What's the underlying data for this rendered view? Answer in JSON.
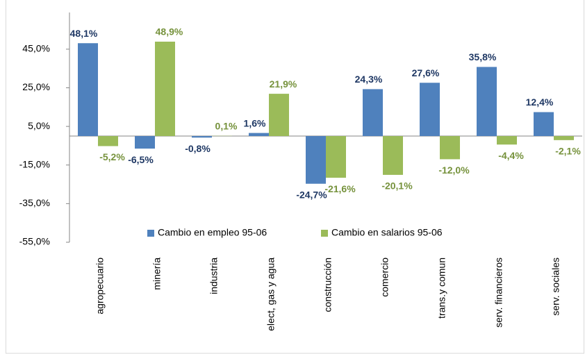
{
  "chart_data": {
    "type": "bar",
    "categories": [
      "agropecuario",
      "minería",
      "industria",
      "elect, gas y agua",
      "construcción",
      "comercio",
      "trans.y comun",
      "serv. financieros",
      "serv. sociales"
    ],
    "series": [
      {
        "name": "Cambio en empleo 95-06",
        "color": "#4f81bd",
        "values": [
          48.1,
          -6.5,
          -0.8,
          1.6,
          -24.7,
          24.3,
          27.6,
          35.8,
          12.4
        ],
        "value_labels": [
          "48,1%",
          "-6,5%",
          "-0,8%",
          "1,6%",
          "-24,7%",
          "24,3%",
          "27,6%",
          "35,8%",
          "12,4%"
        ]
      },
      {
        "name": "Cambio en salarios 95-06",
        "color": "#9bbb59",
        "values": [
          -5.2,
          48.9,
          0.1,
          21.9,
          -21.6,
          -20.1,
          -12.0,
          -4.4,
          -2.1
        ],
        "value_labels": [
          "-5,2%",
          "48,9%",
          "0,1%",
          "21,9%",
          "-21,6%",
          "-20,1%",
          "-12,0%",
          "-4,4%",
          "-2,1%"
        ]
      }
    ],
    "ylim": [
      -55,
      64
    ],
    "yticks": [
      {
        "value": -55,
        "label": "-55,0%"
      },
      {
        "value": -35,
        "label": "-35,0%"
      },
      {
        "value": -15,
        "label": "-15,0%"
      },
      {
        "value": 5,
        "label": "5,0%"
      },
      {
        "value": 25,
        "label": "25,0%"
      },
      {
        "value": 45,
        "label": "45,0%"
      }
    ],
    "grid": false,
    "legend": "bottom"
  }
}
